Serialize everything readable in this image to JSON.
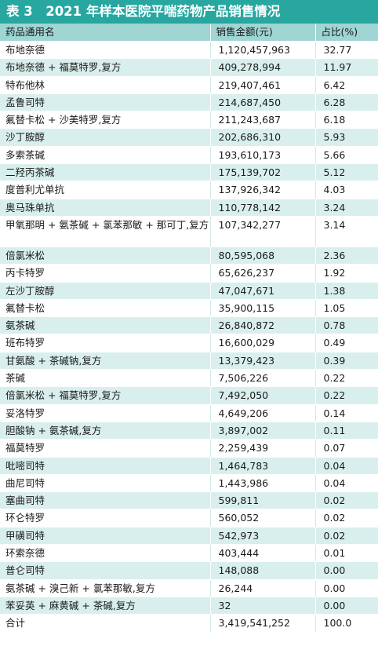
{
  "title": "表 3　2021 年样本医院平喘药物产品销售情况",
  "headers": [
    "药品通用名",
    "销售金额(元)",
    "占比(%)"
  ],
  "rows": [
    {
      "name": "布地奈德",
      "amount": "1,120,457,963",
      "pct": "32.77"
    },
    {
      "name": "布地奈德 + 福莫特罗,复方",
      "amount": "409,278,994",
      "pct": "11.97"
    },
    {
      "name": "特布他林",
      "amount": "219,407,461",
      "pct": "6.42"
    },
    {
      "name": "孟鲁司特",
      "amount": "214,687,450",
      "pct": "6.28"
    },
    {
      "name": "氟替卡松 + 沙美特罗,复方",
      "amount": "211,243,687",
      "pct": "6.18"
    },
    {
      "name": "沙丁胺醇",
      "amount": "202,686,310",
      "pct": "5.93"
    },
    {
      "name": "多索茶碱",
      "amount": "193,610,173",
      "pct": "5.66"
    },
    {
      "name": "二羟丙茶碱",
      "amount": "175,139,702",
      "pct": "5.12"
    },
    {
      "name": "度普利尤单抗",
      "amount": "137,926,342",
      "pct": "4.03"
    },
    {
      "name": "奥马珠单抗",
      "amount": "110,778,142",
      "pct": "3.24"
    },
    {
      "name": "甲氧那明 + 氨茶碱 + 氯苯那敏 + 那可丁,复方",
      "amount": "107,342,277",
      "pct": "3.14"
    },
    {
      "name": "倍氯米松",
      "amount": "80,595,068",
      "pct": "2.36"
    },
    {
      "name": "丙卡特罗",
      "amount": "65,626,237",
      "pct": "1.92"
    },
    {
      "name": "左沙丁胺醇",
      "amount": "47,047,671",
      "pct": "1.38"
    },
    {
      "name": "氟替卡松",
      "amount": "35,900,115",
      "pct": "1.05"
    },
    {
      "name": "氨茶碱",
      "amount": "26,840,872",
      "pct": "0.78"
    },
    {
      "name": "班布特罗",
      "amount": "16,600,029",
      "pct": "0.49"
    },
    {
      "name": "甘氨酸 + 茶碱钠,复方",
      "amount": "13,379,423",
      "pct": "0.39"
    },
    {
      "name": "茶碱",
      "amount": "7,506,226",
      "pct": "0.22"
    },
    {
      "name": "倍氯米松 + 福莫特罗,复方",
      "amount": "7,492,050",
      "pct": "0.22"
    },
    {
      "name": "妥洛特罗",
      "amount": "4,649,206",
      "pct": "0.14"
    },
    {
      "name": "胆酸钠 + 氨茶碱,复方",
      "amount": "3,897,002",
      "pct": "0.11"
    },
    {
      "name": "福莫特罗",
      "amount": "2,259,439",
      "pct": "0.07"
    },
    {
      "name": "吡嘧司特",
      "amount": "1,464,783",
      "pct": "0.04"
    },
    {
      "name": "曲尼司特",
      "amount": "1,443,986",
      "pct": "0.04"
    },
    {
      "name": "塞曲司特",
      "amount": "599,811",
      "pct": "0.02"
    },
    {
      "name": "环仑特罗",
      "amount": "560,052",
      "pct": "0.02"
    },
    {
      "name": "甲磺司特",
      "amount": "542,973",
      "pct": "0.02"
    },
    {
      "name": "环索奈德",
      "amount": "403,444",
      "pct": "0.01"
    },
    {
      "name": "普仑司特",
      "amount": "148,088",
      "pct": "0.00"
    },
    {
      "name": "氨茶碱 + 溴己新 + 氯苯那敏,复方",
      "amount": "26,244",
      "pct": "0.00"
    },
    {
      "name": "苯妥英 + 麻黄碱 + 茶碱,复方",
      "amount": "32",
      "pct": "0.00"
    }
  ],
  "total": {
    "name": "合计",
    "amount": "3,419,541,252",
    "pct": "100.0"
  },
  "colors": {
    "title_bg": "#27a7a0",
    "header_bg": "#9fd5d3",
    "stripe_bg": "#d9efee"
  }
}
